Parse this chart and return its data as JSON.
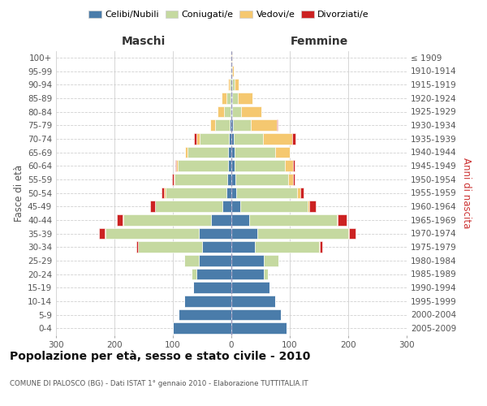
{
  "age_groups": [
    "0-4",
    "5-9",
    "10-14",
    "15-19",
    "20-24",
    "25-29",
    "30-34",
    "35-39",
    "40-44",
    "45-49",
    "50-54",
    "55-59",
    "60-64",
    "65-69",
    "70-74",
    "75-79",
    "80-84",
    "85-89",
    "90-94",
    "95-99",
    "100+"
  ],
  "birth_years": [
    "2005-2009",
    "2000-2004",
    "1995-1999",
    "1990-1994",
    "1985-1989",
    "1980-1984",
    "1975-1979",
    "1970-1974",
    "1965-1969",
    "1960-1964",
    "1955-1959",
    "1950-1954",
    "1945-1949",
    "1940-1944",
    "1935-1939",
    "1930-1934",
    "1925-1929",
    "1920-1924",
    "1915-1919",
    "1910-1914",
    "≤ 1909"
  ],
  "male_celibi": [
    100,
    90,
    80,
    65,
    60,
    55,
    50,
    55,
    35,
    15,
    8,
    7,
    6,
    5,
    4,
    3,
    1,
    1,
    0,
    0,
    0
  ],
  "male_coniugati": [
    0,
    0,
    0,
    0,
    8,
    25,
    110,
    160,
    150,
    115,
    105,
    90,
    85,
    70,
    50,
    25,
    12,
    8,
    3,
    1,
    0
  ],
  "male_vedovi": [
    0,
    0,
    0,
    0,
    0,
    0,
    0,
    1,
    1,
    1,
    2,
    2,
    3,
    4,
    6,
    8,
    10,
    7,
    3,
    1,
    0
  ],
  "male_divorziati": [
    0,
    0,
    0,
    0,
    0,
    0,
    2,
    10,
    10,
    8,
    5,
    3,
    2,
    0,
    4,
    0,
    0,
    0,
    0,
    0,
    0
  ],
  "female_nubili": [
    95,
    85,
    75,
    65,
    55,
    55,
    40,
    45,
    30,
    15,
    8,
    7,
    6,
    5,
    4,
    3,
    1,
    1,
    1,
    0,
    0
  ],
  "female_coniugate": [
    0,
    0,
    0,
    0,
    8,
    25,
    110,
    155,
    150,
    115,
    105,
    90,
    85,
    70,
    50,
    30,
    15,
    10,
    4,
    1,
    0
  ],
  "female_vedove": [
    0,
    0,
    0,
    0,
    0,
    0,
    1,
    2,
    2,
    4,
    5,
    8,
    15,
    25,
    50,
    45,
    35,
    25,
    8,
    3,
    1
  ],
  "female_divorziate": [
    0,
    0,
    0,
    0,
    0,
    0,
    5,
    10,
    15,
    10,
    6,
    4,
    3,
    0,
    6,
    1,
    0,
    0,
    0,
    0,
    0
  ],
  "color_celibi": "#4a7caa",
  "color_coniugati": "#c5d9a0",
  "color_vedovi": "#f5c870",
  "color_divorziati": "#cc2222",
  "title": "Popolazione per età, sesso e stato civile - 2010",
  "subtitle": "COMUNE DI PALOSCO (BG) - Dati ISTAT 1° gennaio 2010 - Elaborazione TUTTITALIA.IT",
  "label_maschi": "Maschi",
  "label_femmine": "Femmine",
  "label_fasce": "Fasce di età",
  "label_anni": "Anni di nascita",
  "legend_labels": [
    "Celibi/Nubili",
    "Coniugati/e",
    "Vedovi/e",
    "Divorziati/e"
  ],
  "xlim": 300,
  "bg_color": "#ffffff",
  "grid_color": "#d0d0d0"
}
